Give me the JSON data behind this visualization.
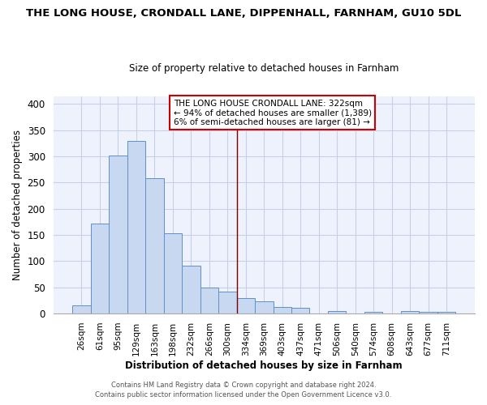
{
  "title": "THE LONG HOUSE, CRONDALL LANE, DIPPENHALL, FARNHAM, GU10 5DL",
  "subtitle": "Size of property relative to detached houses in Farnham",
  "xlabel": "Distribution of detached houses by size in Farnham",
  "ylabel": "Number of detached properties",
  "bar_color": "#c8d8f0",
  "bar_edge_color": "#6090c8",
  "categories": [
    "26sqm",
    "61sqm",
    "95sqm",
    "129sqm",
    "163sqm",
    "198sqm",
    "232sqm",
    "266sqm",
    "300sqm",
    "334sqm",
    "369sqm",
    "403sqm",
    "437sqm",
    "471sqm",
    "506sqm",
    "540sqm",
    "574sqm",
    "608sqm",
    "643sqm",
    "677sqm",
    "711sqm"
  ],
  "values": [
    15,
    172,
    301,
    329,
    259,
    153,
    92,
    50,
    42,
    29,
    23,
    13,
    11,
    0,
    5,
    0,
    4,
    0,
    5,
    3,
    4
  ],
  "reference_line_x": 8.5,
  "reference_line_color": "#7b0000",
  "annotation_text_line1": "THE LONG HOUSE CRONDALL LANE: 322sqm",
  "annotation_text_line2": "← 94% of detached houses are smaller (1,389)",
  "annotation_text_line3": "6% of semi-detached houses are larger (81) →",
  "footer_line1": "Contains HM Land Registry data © Crown copyright and database right 2024.",
  "footer_line2": "Contains public sector information licensed under the Open Government Licence v3.0.",
  "ylim": [
    0,
    415
  ],
  "yticks": [
    0,
    50,
    100,
    150,
    200,
    250,
    300,
    350,
    400
  ],
  "background_color": "#ffffff",
  "axes_bg_color": "#eef2fc",
  "grid_color": "#c8d0e8",
  "title_fontsize": 9.5,
  "subtitle_fontsize": 8.5
}
